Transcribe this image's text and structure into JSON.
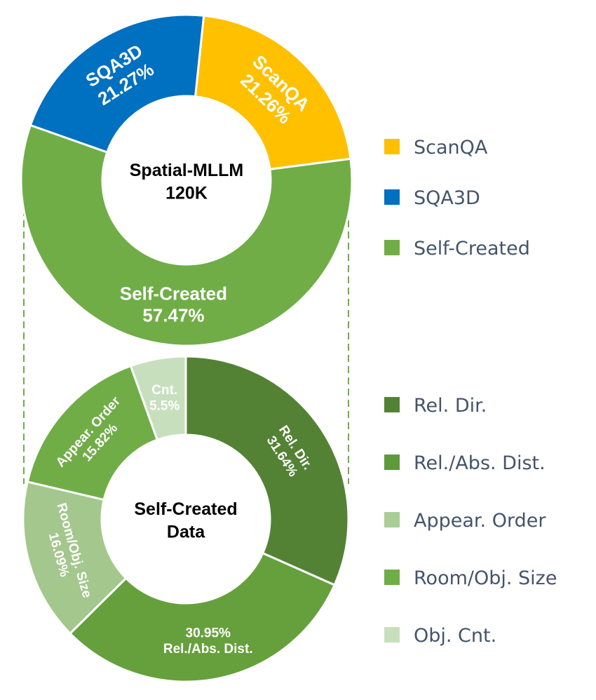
{
  "chart_data": [
    {
      "type": "donut",
      "center_label": [
        "Spatial-MLLM",
        "120K"
      ],
      "slices": [
        {
          "name": "ScanQA",
          "value": 21.26,
          "label_lines": [
            "ScanQA",
            "21.26%"
          ],
          "color": "#ffc000"
        },
        {
          "name": "Self-Created",
          "value": 57.47,
          "label_lines": [
            "Self-Created",
            "57.47%"
          ],
          "color": "#70ad47"
        },
        {
          "name": "SQA3D",
          "value": 21.27,
          "label_lines": [
            "SQA3D",
            "21.27%"
          ],
          "color": "#0070c0"
        }
      ],
      "legend": {
        "position": "right",
        "items": [
          {
            "label": "ScanQA",
            "color": "#ffc000"
          },
          {
            "label": "SQA3D",
            "color": "#0070c0"
          },
          {
            "label": "Self-Created",
            "color": "#70ad47"
          }
        ]
      }
    },
    {
      "type": "donut",
      "center_label": [
        "Self-Created",
        "Data"
      ],
      "slices": [
        {
          "name": "Rel. Dir.",
          "value": 31.64,
          "label_lines": [
            "Rel. Dir.",
            "31.64%"
          ],
          "color": "#548235"
        },
        {
          "name": "Rel./Abs. Dist.",
          "value": 30.95,
          "label_lines": [
            "30.95%",
            "Rel./Abs. Dist."
          ],
          "color": "#66a03c"
        },
        {
          "name": "Room/Obj. Size",
          "value": 16.09,
          "label_lines": [
            "Room/Obj. Size",
            "16.09%"
          ],
          "color": "#a3c78d"
        },
        {
          "name": "Appear. Order",
          "value": 15.82,
          "label_lines": [
            "Appear. Order",
            "15.82%"
          ],
          "color": "#70ad47"
        },
        {
          "name": "Cnt.",
          "value": 5.5,
          "label_lines": [
            "Cnt.",
            "5.5%"
          ],
          "color": "#c8dfbd"
        }
      ],
      "legend": {
        "position": "right",
        "items": [
          {
            "label": "Rel. Dir.",
            "color": "#548235"
          },
          {
            "label": "Rel./Abs. Dist.",
            "color": "#5e9a3c"
          },
          {
            "label": "Appear. Order",
            "color": "#a9cd95"
          },
          {
            "label": "Room/Obj. Size",
            "color": "#70ad47"
          },
          {
            "label": "Obj. Cnt.",
            "color": "#c8dfbd"
          }
        ]
      }
    }
  ]
}
